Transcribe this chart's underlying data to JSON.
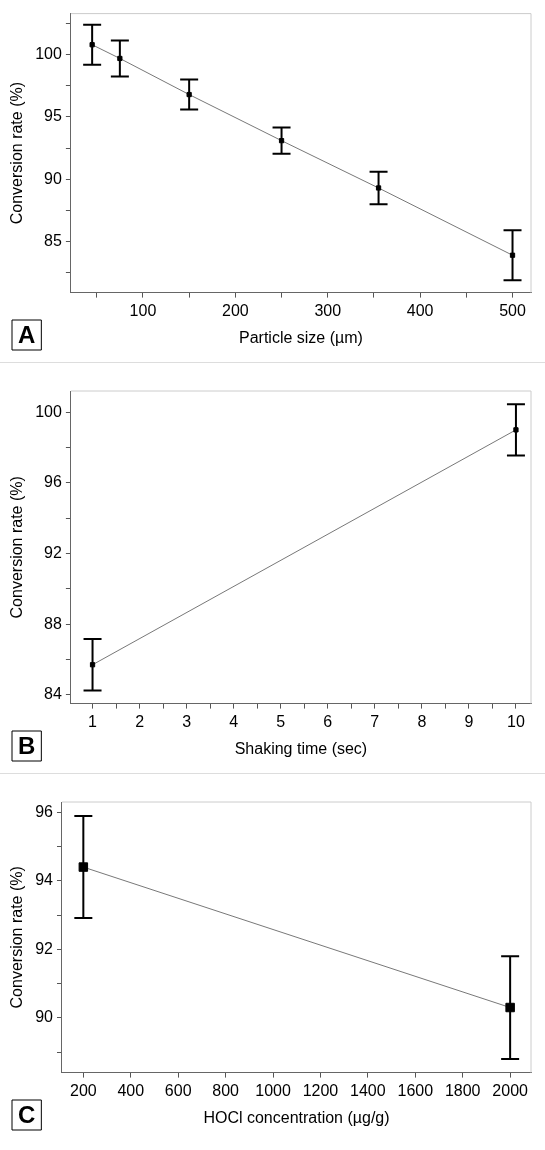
{
  "chart_data": [
    {
      "type": "line",
      "xlabel": "Particle size (µm)",
      "ylabel": "Conversion rate (%)",
      "annotations": [
        "A"
      ],
      "marker": "square",
      "line_style": "solid",
      "grid": false,
      "legend": false,
      "x": [
        45,
        75,
        150,
        250,
        355,
        500
      ],
      "series": [
        {
          "color": "#000000",
          "values": [
            100.8,
            99.7,
            96.8,
            93.1,
            89.3,
            83.9
          ],
          "errors": [
            1.6,
            1.45,
            1.2,
            1.05,
            1.3,
            2.0
          ]
        }
      ],
      "xlim": [
        22,
        520
      ],
      "xticks": [
        {
          "value": 50,
          "label": null
        },
        100,
        {
          "value": 150,
          "label": null
        },
        200,
        {
          "value": 250,
          "label": null
        },
        300,
        {
          "value": 350,
          "label": null
        },
        400,
        {
          "value": 450,
          "label": null
        },
        500
      ],
      "ylim": [
        80.9,
        103.3
      ],
      "yticks": [
        {
          "value": 82.5,
          "label": null
        },
        85,
        {
          "value": 87.5,
          "label": null
        },
        90,
        {
          "value": 92.5,
          "label": null
        },
        95,
        {
          "value": 97.5,
          "label": null
        },
        100,
        {
          "value": 102.5,
          "label": null
        }
      ]
    },
    {
      "type": "line",
      "xlabel": "Shaking time (sec)",
      "ylabel": "Conversion rate (%)",
      "annotations": [
        "B"
      ],
      "marker": "square",
      "line_style": "solid",
      "grid": false,
      "legend": false,
      "x": [
        1,
        10
      ],
      "series": [
        {
          "color": "#000000",
          "values": [
            85.7,
            99.0
          ],
          "errors": [
            1.46,
            1.45
          ]
        }
      ],
      "xlim": [
        0.54,
        10.32
      ],
      "xticks": [
        1,
        {
          "value": 1.5,
          "label": null
        },
        2,
        {
          "value": 2.5,
          "label": null
        },
        3,
        {
          "value": 3.5,
          "label": null
        },
        4,
        {
          "value": 4.5,
          "label": null
        },
        5,
        {
          "value": 5.5,
          "label": null
        },
        6,
        {
          "value": 6.5,
          "label": null
        },
        7,
        {
          "value": 7.5,
          "label": null
        },
        8,
        {
          "value": 8.5,
          "label": null
        },
        9,
        {
          "value": 9.5,
          "label": null
        },
        10
      ],
      "ylim": [
        83.5,
        101.2
      ],
      "yticks": [
        84,
        {
          "value": 86,
          "label": null
        },
        88,
        {
          "value": 90,
          "label": null
        },
        92,
        {
          "value": 94,
          "label": null
        },
        96,
        {
          "value": 98,
          "label": null
        },
        100
      ]
    },
    {
      "type": "line",
      "xlabel": "HOCl concentration (µg/g)",
      "ylabel": "Conversion rate (%)",
      "annotations": [
        "C"
      ],
      "marker": "square",
      "line_style": "solid",
      "grid": false,
      "legend": false,
      "x": [
        200,
        2000
      ],
      "series": [
        {
          "color": "#000000",
          "values": [
            94.4,
            90.3
          ],
          "errors": [
            1.49,
            1.5
          ]
        }
      ],
      "xlim": [
        110,
        2088
      ],
      "xticks": [
        200,
        400,
        600,
        800,
        1000,
        1200,
        1400,
        1600,
        1800,
        2000
      ],
      "ylim": [
        88.4,
        96.3
      ],
      "yticks": [
        {
          "value": 89,
          "label": null
        },
        90,
        {
          "value": 91,
          "label": null
        },
        92,
        {
          "value": 93,
          "label": null
        },
        94,
        {
          "value": 95,
          "label": null
        },
        96
      ]
    }
  ]
}
